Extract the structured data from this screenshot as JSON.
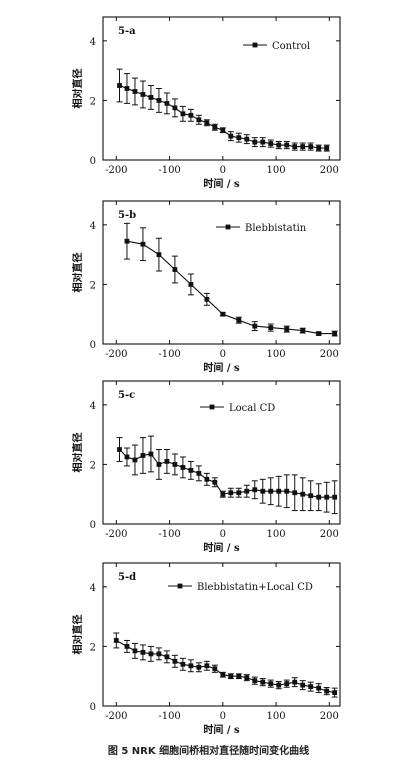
{
  "caption": "图 5   NRK 细胞间桥相对直径随时间变化曲线",
  "chart_data": [
    {
      "type": "line",
      "panel_label": "5-a",
      "ylabel": "相对直径",
      "xlabel": "时间 / s",
      "xlim": [
        -225,
        220
      ],
      "ylim": [
        0,
        4.8
      ],
      "xticks": [
        -200,
        -100,
        0,
        100,
        200
      ],
      "yticks": [
        0,
        2,
        4
      ],
      "legend_position": "top-right",
      "series": [
        {
          "name": "Control",
          "x": [
            -194,
            -180,
            -165,
            -150,
            -135,
            -120,
            -105,
            -90,
            -75,
            -60,
            -45,
            -30,
            -15,
            0,
            15,
            30,
            45,
            60,
            75,
            90,
            105,
            120,
            135,
            150,
            165,
            180,
            195
          ],
          "y": [
            2.5,
            2.4,
            2.3,
            2.2,
            2.1,
            2.0,
            1.9,
            1.75,
            1.55,
            1.5,
            1.35,
            1.25,
            1.1,
            1.0,
            0.8,
            0.75,
            0.7,
            0.6,
            0.6,
            0.55,
            0.5,
            0.5,
            0.45,
            0.45,
            0.45,
            0.4,
            0.4
          ],
          "err": [
            0.55,
            0.5,
            0.45,
            0.45,
            0.4,
            0.4,
            0.35,
            0.3,
            0.25,
            0.2,
            0.15,
            0.1,
            0.1,
            0.08,
            0.15,
            0.15,
            0.15,
            0.15,
            0.15,
            0.12,
            0.12,
            0.12,
            0.12,
            0.12,
            0.12,
            0.1,
            0.1
          ]
        }
      ]
    },
    {
      "type": "line",
      "panel_label": "5-b",
      "ylabel": "相对直径",
      "xlabel": "时间 / s",
      "xlim": [
        -225,
        220
      ],
      "ylim": [
        0,
        4.8
      ],
      "xticks": [
        -200,
        -100,
        0,
        100,
        200
      ],
      "yticks": [
        0,
        2,
        4
      ],
      "legend_position": "top-right",
      "series": [
        {
          "name": "Blebbistatin",
          "x": [
            -180,
            -150,
            -120,
            -90,
            -60,
            -30,
            0,
            30,
            60,
            90,
            120,
            150,
            180,
            210
          ],
          "y": [
            3.45,
            3.35,
            3.0,
            2.5,
            2.0,
            1.5,
            1.0,
            0.8,
            0.6,
            0.55,
            0.5,
            0.45,
            0.35,
            0.35
          ],
          "err": [
            0.6,
            0.55,
            0.55,
            0.45,
            0.35,
            0.2,
            0.05,
            0.1,
            0.15,
            0.12,
            0.1,
            0.08,
            0.05,
            0.08
          ]
        }
      ]
    },
    {
      "type": "line",
      "panel_label": "5-c",
      "ylabel": "相对直径",
      "xlabel": "时间 / s",
      "xlim": [
        -225,
        220
      ],
      "ylim": [
        0,
        4.8
      ],
      "xticks": [
        -200,
        -100,
        0,
        100,
        200
      ],
      "yticks": [
        0,
        2,
        4
      ],
      "legend_position": "top-center",
      "series": [
        {
          "name": "Local CD",
          "x": [
            -194,
            -180,
            -165,
            -150,
            -135,
            -120,
            -105,
            -90,
            -75,
            -60,
            -45,
            -30,
            -15,
            0,
            15,
            30,
            45,
            60,
            75,
            90,
            105,
            120,
            135,
            150,
            165,
            180,
            195,
            210
          ],
          "y": [
            2.5,
            2.25,
            2.15,
            2.3,
            2.35,
            2.0,
            2.1,
            2.0,
            1.9,
            1.8,
            1.7,
            1.5,
            1.4,
            1.0,
            1.05,
            1.05,
            1.1,
            1.15,
            1.1,
            1.1,
            1.1,
            1.1,
            1.05,
            1.0,
            0.95,
            0.9,
            0.9,
            0.9
          ],
          "err": [
            0.4,
            0.3,
            0.5,
            0.6,
            0.6,
            0.5,
            0.4,
            0.35,
            0.35,
            0.3,
            0.25,
            0.2,
            0.15,
            0.1,
            0.15,
            0.15,
            0.2,
            0.3,
            0.4,
            0.45,
            0.5,
            0.55,
            0.6,
            0.55,
            0.5,
            0.45,
            0.5,
            0.55
          ]
        }
      ]
    },
    {
      "type": "line",
      "panel_label": "5-d",
      "ylabel": "相对直径",
      "xlabel": "时间 / s",
      "xlim": [
        -225,
        220
      ],
      "ylim": [
        0,
        4.8
      ],
      "xticks": [
        -200,
        -100,
        0,
        100,
        200
      ],
      "yticks": [
        0,
        2,
        4
      ],
      "legend_position": "top-right",
      "series": [
        {
          "name": "Blebbistatin+Local CD",
          "x": [
            -200,
            -180,
            -165,
            -150,
            -135,
            -120,
            -105,
            -90,
            -75,
            -60,
            -45,
            -30,
            -15,
            0,
            15,
            30,
            45,
            60,
            75,
            90,
            105,
            120,
            135,
            150,
            165,
            180,
            195,
            210
          ],
          "y": [
            2.2,
            2.0,
            1.85,
            1.8,
            1.75,
            1.75,
            1.65,
            1.5,
            1.4,
            1.35,
            1.3,
            1.35,
            1.25,
            1.05,
            1.0,
            1.0,
            0.95,
            0.85,
            0.8,
            0.75,
            0.7,
            0.75,
            0.8,
            0.7,
            0.65,
            0.6,
            0.5,
            0.45
          ],
          "err": [
            0.25,
            0.2,
            0.25,
            0.25,
            0.25,
            0.2,
            0.2,
            0.2,
            0.2,
            0.2,
            0.15,
            0.15,
            0.12,
            0.08,
            0.08,
            0.08,
            0.1,
            0.12,
            0.12,
            0.12,
            0.12,
            0.12,
            0.15,
            0.15,
            0.15,
            0.15,
            0.12,
            0.15
          ]
        }
      ]
    }
  ]
}
